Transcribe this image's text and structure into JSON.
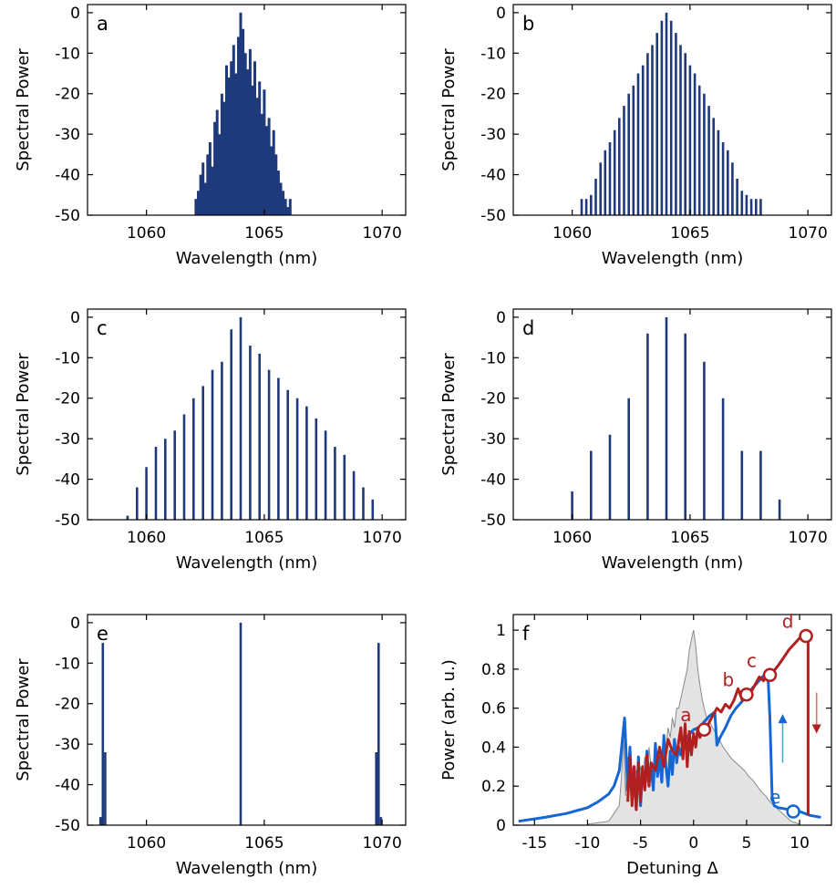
{
  "chart_data": [
    {
      "type": "bar",
      "panel_label": "a",
      "xlabel": "Wavelength (nm)",
      "ylabel": "Spectral Power",
      "xlim": [
        1057.5,
        1071
      ],
      "ylim": [
        -50,
        2
      ],
      "xticks": [
        "1060",
        "1065",
        "1070"
      ],
      "yticks": [
        "0",
        "-10",
        "-20",
        "-30",
        "-40",
        "-50"
      ],
      "color": "#1f3a7a",
      "x": [
        1062.1,
        1062.2,
        1062.3,
        1062.4,
        1062.5,
        1062.6,
        1062.7,
        1062.8,
        1062.9,
        1063.0,
        1063.1,
        1063.2,
        1063.3,
        1063.4,
        1063.5,
        1063.6,
        1063.7,
        1063.8,
        1063.9,
        1064.0,
        1064.1,
        1064.2,
        1064.3,
        1064.4,
        1064.5,
        1064.6,
        1064.7,
        1064.8,
        1064.9,
        1065.0,
        1065.1,
        1065.2,
        1065.3,
        1065.4,
        1065.5,
        1065.6,
        1065.7,
        1065.8,
        1065.9,
        1066.0,
        1066.1
      ],
      "y": [
        -46,
        -44,
        -40,
        -37,
        -42,
        -35,
        -32,
        -38,
        -27,
        -24,
        -30,
        -20,
        -22,
        -13,
        -16,
        -12,
        -8,
        -15,
        -6,
        0,
        -4,
        -10,
        -14,
        -9,
        -18,
        -12,
        -21,
        -17,
        -25,
        -19,
        -28,
        -26,
        -33,
        -29,
        -35,
        -39,
        -42,
        -44,
        -46,
        -48,
        -46
      ]
    },
    {
      "type": "bar",
      "panel_label": "b",
      "xlabel": "Wavelength (nm)",
      "ylabel": "Spectral Power",
      "xlim": [
        1057.5,
        1071
      ],
      "ylim": [
        -50,
        2
      ],
      "xticks": [
        "1060",
        "1065",
        "1070"
      ],
      "yticks": [
        "0",
        "-10",
        "-20",
        "-30",
        "-40",
        "-50"
      ],
      "color": "#1f3a7a",
      "x": [
        1060.4,
        1060.6,
        1060.8,
        1061.0,
        1061.2,
        1061.4,
        1061.6,
        1061.8,
        1062.0,
        1062.2,
        1062.4,
        1062.6,
        1062.8,
        1063.0,
        1063.2,
        1063.4,
        1063.6,
        1063.8,
        1064.0,
        1064.2,
        1064.4,
        1064.6,
        1064.8,
        1065.0,
        1065.2,
        1065.4,
        1065.6,
        1065.8,
        1066.0,
        1066.2,
        1066.4,
        1066.6,
        1066.8,
        1067.0,
        1067.2,
        1067.4,
        1067.6,
        1067.8,
        1068.0
      ],
      "y": [
        -46,
        -46,
        -45,
        -41,
        -37,
        -34,
        -32,
        -29,
        -26,
        -23,
        -20,
        -18,
        -15,
        -13,
        -10,
        -8,
        -5,
        -2,
        0,
        -2,
        -5,
        -8,
        -10,
        -13,
        -15,
        -18,
        -20,
        -23,
        -26,
        -29,
        -32,
        -34,
        -37,
        -41,
        -44,
        -45,
        -46,
        -46,
        -46
      ]
    },
    {
      "type": "bar",
      "panel_label": "c",
      "xlabel": "Wavelength (nm)",
      "ylabel": "Spectral Power",
      "xlim": [
        1057.5,
        1071
      ],
      "ylim": [
        -50,
        2
      ],
      "xticks": [
        "1060",
        "1065",
        "1070"
      ],
      "yticks": [
        "0",
        "-10",
        "-20",
        "-30",
        "-40",
        "-50"
      ],
      "color": "#1f3a7a",
      "x": [
        1059.2,
        1059.6,
        1060.0,
        1060.4,
        1060.8,
        1061.2,
        1061.6,
        1062.0,
        1062.4,
        1062.8,
        1063.2,
        1063.6,
        1064.0,
        1064.4,
        1064.8,
        1065.2,
        1065.6,
        1066.0,
        1066.4,
        1066.8,
        1067.2,
        1067.6,
        1068.0,
        1068.4,
        1068.8,
        1069.2,
        1069.6
      ],
      "y": [
        -49,
        -42,
        -37,
        -32,
        -30,
        -28,
        -24,
        -20,
        -17,
        -13,
        -11,
        -3,
        0,
        -7,
        -9,
        -13,
        -15,
        -18,
        -20,
        -22,
        -25,
        -28,
        -32,
        -34,
        -38,
        -42,
        -45
      ]
    },
    {
      "type": "bar",
      "panel_label": "d",
      "xlabel": "Wavelength (nm)",
      "ylabel": "Spectral Power",
      "xlim": [
        1057.5,
        1071
      ],
      "ylim": [
        -50,
        2
      ],
      "xticks": [
        "1060",
        "1065",
        "1070"
      ],
      "yticks": [
        "0",
        "-10",
        "-20",
        "-30",
        "-40",
        "-50"
      ],
      "color": "#1f3a7a",
      "x": [
        1060.0,
        1060.8,
        1061.6,
        1062.4,
        1063.2,
        1064.0,
        1064.8,
        1065.6,
        1066.4,
        1067.2,
        1068.0,
        1068.8
      ],
      "y": [
        -43,
        -33,
        -29,
        -20,
        -4,
        0,
        -4,
        -11,
        -20,
        -33,
        -33,
        -45
      ]
    },
    {
      "type": "bar",
      "panel_label": "e",
      "xlabel": "Wavelength (nm)",
      "ylabel": "Spectral Power",
      "xlim": [
        1057.5,
        1071
      ],
      "ylim": [
        -50,
        2
      ],
      "xticks": [
        "1060",
        "1065",
        "1070"
      ],
      "yticks": [
        "0",
        "-10",
        "-20",
        "-30",
        "-40",
        "-50"
      ],
      "color": "#1f3a7a",
      "x": [
        1058.05,
        1058.15,
        1058.25,
        1064.0,
        1069.75,
        1069.85,
        1069.95
      ],
      "y": [
        -48,
        -5,
        -32,
        0,
        -32,
        -5,
        -48
      ]
    },
    {
      "type": "line",
      "panel_label": "f",
      "xlabel": "Detuning Δ",
      "ylabel": "Power (arb. u.)",
      "xlim": [
        -17,
        13
      ],
      "ylim": [
        0,
        1.08
      ],
      "xticks": [
        "-15",
        "-10",
        "-5",
        "0",
        "5",
        "10"
      ],
      "yticks": [
        "0",
        "0.2",
        "0.4",
        "0.6",
        "0.8",
        "1"
      ],
      "background_fill": {
        "color": "#e3e3e3",
        "x": [
          -10,
          -8,
          -7,
          -6.8,
          -6.6,
          -6.4,
          -6.2,
          -6,
          -5.8,
          -5.6,
          -5.4,
          -5.2,
          -5,
          -4.8,
          -4.6,
          -4.4,
          -4.2,
          -4,
          -3.8,
          -3.6,
          -3.4,
          -3.2,
          -3,
          -2.8,
          -2.6,
          -2.4,
          -2.2,
          -2,
          -1.8,
          -1.6,
          -1.4,
          -1.2,
          -1,
          -0.8,
          -0.6,
          -0.4,
          -0.2,
          0,
          0.2,
          0.4,
          0.6,
          0.8,
          1,
          1.2,
          1.6,
          2,
          2.4,
          2.8,
          3.2,
          3.6,
          4,
          4.4,
          4.8,
          5.2,
          5.6,
          6,
          6.4,
          6.8,
          7.2,
          7.6,
          8,
          8.4,
          8.8,
          9.2,
          10
        ],
        "y": [
          0.005,
          0.02,
          0.1,
          0.25,
          0.45,
          0.15,
          0.35,
          0.2,
          0.3,
          0.22,
          0.28,
          0.18,
          0.3,
          0.25,
          0.35,
          0.22,
          0.4,
          0.3,
          0.28,
          0.35,
          0.3,
          0.4,
          0.35,
          0.45,
          0.4,
          0.5,
          0.45,
          0.55,
          0.5,
          0.6,
          0.6,
          0.65,
          0.7,
          0.75,
          0.8,
          0.9,
          0.95,
          1.0,
          0.92,
          0.8,
          0.72,
          0.65,
          0.6,
          0.56,
          0.52,
          0.48,
          0.44,
          0.4,
          0.37,
          0.34,
          0.32,
          0.3,
          0.28,
          0.25,
          0.23,
          0.2,
          0.17,
          0.15,
          0.12,
          0.1,
          0.08,
          0.06,
          0.04,
          0.02,
          0.005
        ]
      },
      "series": [
        {
          "color": "#1466d4",
          "x": [
            -16.5,
            -14,
            -12,
            -10,
            -9,
            -8,
            -7.5,
            -7,
            -6.5,
            -6.2,
            -6.0,
            -5.8,
            -5.6,
            -5.4,
            -5.2,
            -5.0,
            -4.8,
            -4.6,
            -4.4,
            -4.2,
            -4.0,
            -3.8,
            -3.6,
            -3.4,
            -3.2,
            -3.0,
            -2.8,
            -2.6,
            -2.4,
            -2.2,
            -2.0,
            -1.8,
            -1.6,
            -1.4,
            -1.2,
            -1.0,
            -0.5,
            0,
            0.5,
            1,
            1.5,
            2,
            2.2,
            2.5,
            3,
            3.5,
            4,
            4.5,
            5,
            5.5,
            6,
            6.5,
            7,
            7.2,
            7.4,
            7.6,
            8,
            9,
            10,
            11,
            12
          ],
          "y": [
            0.02,
            0.04,
            0.06,
            0.09,
            0.12,
            0.16,
            0.2,
            0.28,
            0.55,
            0.18,
            0.4,
            0.12,
            0.3,
            0.08,
            0.35,
            0.1,
            0.28,
            0.2,
            0.38,
            0.22,
            0.3,
            0.18,
            0.42,
            0.25,
            0.35,
            0.22,
            0.46,
            0.3,
            0.2,
            0.38,
            0.26,
            0.44,
            0.32,
            0.4,
            0.36,
            0.42,
            0.46,
            0.49,
            0.5,
            0.53,
            0.56,
            0.58,
            0.41,
            0.45,
            0.5,
            0.56,
            0.6,
            0.63,
            0.66,
            0.7,
            0.73,
            0.76,
            0.79,
            0.55,
            0.15,
            0.1,
            0.09,
            0.08,
            0.07,
            0.05,
            0.04
          ]
        },
        {
          "color": "#b11f1f",
          "x": [
            -6.2,
            -6.0,
            -5.8,
            -5.6,
            -5.4,
            -5.2,
            -5.0,
            -4.8,
            -4.6,
            -4.4,
            -4.2,
            -4.0,
            -3.6,
            -3.2,
            -2.8,
            -2.4,
            -2.0,
            -1.6,
            -1.2,
            -1.0,
            -0.8,
            -0.6,
            -0.4,
            -0.2,
            0,
            0.2,
            0.4,
            0.6,
            0.8,
            1.0,
            1.4,
            1.8,
            2.2,
            2.6,
            3.0,
            3.4,
            3.8,
            4.2,
            4.6,
            5.0,
            5.4,
            5.8,
            6.2,
            6.6,
            7.0,
            7.4,
            8,
            8.5,
            9,
            9.5,
            10,
            10.5,
            10.8,
            10.8
          ],
          "y": [
            0.12,
            0.35,
            0.1,
            0.3,
            0.08,
            0.32,
            0.12,
            0.3,
            0.18,
            0.36,
            0.2,
            0.32,
            0.28,
            0.4,
            0.3,
            0.44,
            0.38,
            0.36,
            0.5,
            0.34,
            0.52,
            0.3,
            0.48,
            0.36,
            0.47,
            0.4,
            0.5,
            0.45,
            0.48,
            0.5,
            0.52,
            0.56,
            0.6,
            0.58,
            0.62,
            0.6,
            0.64,
            0.7,
            0.64,
            0.68,
            0.68,
            0.72,
            0.76,
            0.74,
            0.78,
            0.78,
            0.82,
            0.86,
            0.9,
            0.93,
            0.96,
            0.98,
            0.97,
            0.05
          ]
        }
      ],
      "annotations": [
        {
          "text": "a",
          "x": 1.0,
          "y": 0.49,
          "color": "#b11f1f"
        },
        {
          "text": "b",
          "x": 5.0,
          "y": 0.67,
          "color": "#b11f1f"
        },
        {
          "text": "c",
          "x": 7.2,
          "y": 0.77,
          "color": "#b11f1f"
        },
        {
          "text": "d",
          "x": 10.6,
          "y": 0.97,
          "color": "#b11f1f"
        },
        {
          "text": "e",
          "x": 9.4,
          "y": 0.07,
          "color": "#1466d4"
        }
      ]
    }
  ]
}
